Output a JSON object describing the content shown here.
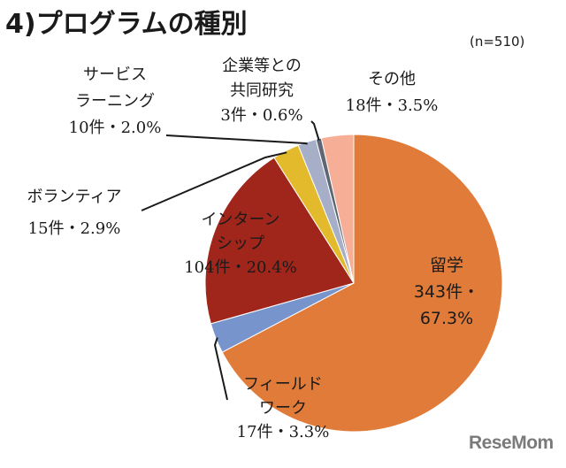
{
  "title": "4)プログラムの種別",
  "sample_note": "(n=510)",
  "brand": "ReseMom",
  "colors": {
    "study_abroad": "#E07B39",
    "fieldwork": "#7894CC",
    "internship": "#A0261C",
    "volunteer": "#E2BA2C",
    "service_learning": "#A6AFC7",
    "joint_research": "#5F6674",
    "other": "#F6AE96",
    "leader": "#1a1a1a"
  },
  "chart_data": {
    "type": "pie",
    "title": "4)プログラムの種別",
    "note": "(n=510)",
    "slices": [
      {
        "key": "study_abroad",
        "name": "留学",
        "count": 343,
        "percent": 67.3,
        "lines": [
          "留学",
          "343件・",
          "67.3%"
        ]
      },
      {
        "key": "fieldwork",
        "name": "フィールドワーク",
        "count": 17,
        "percent": 3.3,
        "lines": [
          "フィールド",
          "ワーク",
          "17件・3.3%"
        ]
      },
      {
        "key": "internship",
        "name": "インターンシップ",
        "count": 104,
        "percent": 20.4,
        "lines": [
          "インターン",
          "シップ",
          "104件・20.4%"
        ]
      },
      {
        "key": "volunteer",
        "name": "ボランティア",
        "count": 15,
        "percent": 2.9,
        "lines": [
          "ボランティア",
          "15件・2.9%"
        ]
      },
      {
        "key": "service_learning",
        "name": "サービスラーニング",
        "count": 10,
        "percent": 2.0,
        "lines": [
          "サービス",
          "ラーニング",
          "10件・2.0%"
        ]
      },
      {
        "key": "joint_research",
        "name": "企業等との共同研究",
        "count": 3,
        "percent": 0.6,
        "lines": [
          "企業等との",
          "共同研究",
          "3件・0.6%"
        ]
      },
      {
        "key": "other",
        "name": "その他",
        "count": 18,
        "percent": 3.5,
        "lines": [
          "その他",
          "18件・3.5%"
        ]
      }
    ]
  }
}
